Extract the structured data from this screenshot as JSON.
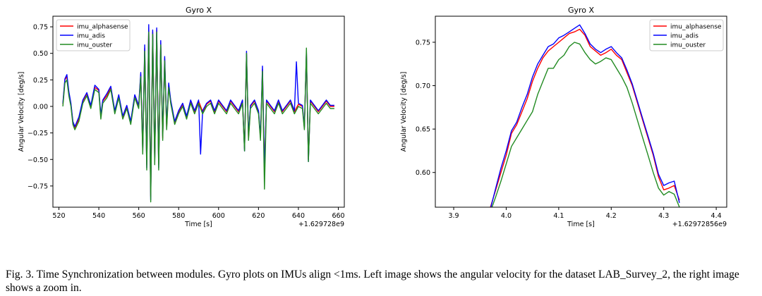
{
  "chart_data": [
    {
      "type": "line",
      "title": "Gyro X",
      "xlabel": "Time [s]",
      "ylabel": "Angular Velocity [deg/s]",
      "x_offset_label": "+1.629728e9",
      "xlim": [
        517,
        663
      ],
      "ylim": [
        -0.95,
        0.85
      ],
      "xticks": [
        520,
        540,
        560,
        580,
        600,
        620,
        640,
        660
      ],
      "yticks": [
        -0.75,
        -0.5,
        -0.25,
        0.0,
        0.25,
        0.5,
        0.75
      ],
      "ytick_labels": [
        "−0.75",
        "−0.50",
        "−0.25",
        "0.00",
        "0.25",
        "0.50",
        "0.75"
      ],
      "legend_position": "top-left",
      "grid": false,
      "series": [
        {
          "name": "imu_alphasense",
          "color": "#ff0000",
          "x": [
            522,
            523,
            524,
            525,
            526,
            527,
            528,
            530,
            532,
            534,
            536,
            538,
            540,
            541,
            542,
            544,
            546,
            548,
            550,
            552,
            554,
            556,
            558,
            560,
            561,
            562,
            563,
            564,
            565,
            566,
            567,
            568,
            569,
            570,
            571,
            572,
            573,
            574,
            575,
            576,
            578,
            580,
            582,
            584,
            586,
            588,
            590,
            592,
            594,
            596,
            598,
            600,
            602,
            604,
            606,
            608,
            610,
            612,
            613,
            614,
            615,
            616,
            618,
            620,
            621,
            622,
            623,
            624,
            626,
            628,
            630,
            632,
            634,
            636,
            638,
            640,
            642,
            643,
            644,
            645,
            646,
            648,
            650,
            652,
            654,
            656,
            658
          ],
          "y": [
            0.02,
            0.25,
            0.28,
            0.12,
            0.02,
            -0.15,
            -0.2,
            -0.12,
            0.05,
            0.12,
            0.0,
            0.18,
            0.15,
            -0.1,
            0.05,
            0.1,
            0.18,
            -0.05,
            0.1,
            -0.1,
            0.0,
            -0.15,
            0.1,
            0.0,
            0.3,
            -0.4,
            0.55,
            -0.55,
            0.74,
            -0.85,
            0.7,
            -0.5,
            0.72,
            -0.55,
            0.6,
            -0.3,
            0.45,
            -0.2,
            0.2,
            0.05,
            -0.15,
            -0.05,
            0.02,
            -0.1,
            0.05,
            -0.05,
            0.05,
            -0.05,
            0.02,
            0.05,
            -0.05,
            0.05,
            0.0,
            -0.05,
            0.05,
            0.0,
            -0.05,
            0.05,
            -0.4,
            0.5,
            -0.3,
            0.0,
            0.05,
            -0.05,
            -0.3,
            0.35,
            -0.6,
            0.05,
            0.0,
            -0.05,
            0.05,
            -0.05,
            0.0,
            0.05,
            -0.05,
            0.02,
            0.0,
            -0.2,
            0.5,
            -0.5,
            0.05,
            0.0,
            -0.05,
            0.0,
            0.05,
            0.0,
            0.0
          ]
        },
        {
          "name": "imu_adis",
          "color": "#0000ff",
          "x": [
            522,
            523,
            524,
            525,
            526,
            527,
            528,
            530,
            532,
            534,
            536,
            538,
            540,
            541,
            542,
            544,
            546,
            548,
            550,
            552,
            554,
            556,
            558,
            560,
            561,
            562,
            563,
            564,
            565,
            566,
            567,
            568,
            569,
            570,
            571,
            572,
            573,
            574,
            575,
            576,
            578,
            580,
            582,
            584,
            586,
            588,
            590,
            591,
            592,
            594,
            596,
            598,
            600,
            602,
            604,
            606,
            608,
            610,
            612,
            613,
            614,
            615,
            616,
            618,
            620,
            621,
            622,
            623,
            624,
            626,
            628,
            630,
            632,
            634,
            636,
            638,
            639,
            640,
            642,
            643,
            644,
            645,
            646,
            648,
            650,
            652,
            654,
            656,
            658
          ],
          "y": [
            0.03,
            0.26,
            0.3,
            0.14,
            0.03,
            -0.14,
            -0.19,
            -0.1,
            0.06,
            0.13,
            0.01,
            0.2,
            0.16,
            -0.08,
            0.06,
            0.12,
            0.19,
            -0.04,
            0.11,
            -0.09,
            0.01,
            -0.14,
            0.11,
            0.01,
            0.32,
            -0.42,
            0.58,
            -0.58,
            0.77,
            -0.88,
            0.72,
            -0.52,
            0.74,
            -0.58,
            0.62,
            -0.28,
            0.47,
            -0.18,
            0.22,
            0.06,
            -0.14,
            -0.04,
            0.03,
            -0.09,
            0.06,
            -0.04,
            0.06,
            -0.45,
            -0.04,
            0.03,
            0.06,
            -0.04,
            0.06,
            0.01,
            -0.04,
            0.06,
            0.01,
            -0.04,
            0.06,
            -0.42,
            0.52,
            -0.28,
            0.01,
            0.06,
            -0.04,
            -0.28,
            0.38,
            -0.62,
            0.06,
            0.01,
            -0.04,
            0.06,
            -0.04,
            0.01,
            0.06,
            -0.04,
            0.42,
            0.03,
            0.01,
            -0.2,
            0.52,
            -0.52,
            0.06,
            0.01,
            -0.04,
            0.01,
            0.06,
            0.01,
            0.01
          ]
        },
        {
          "name": "imu_ouster",
          "color": "#228b22",
          "x": [
            522,
            523,
            524,
            525,
            526,
            527,
            528,
            530,
            532,
            534,
            536,
            538,
            540,
            541,
            542,
            544,
            546,
            548,
            550,
            552,
            554,
            556,
            558,
            560,
            561,
            562,
            563,
            564,
            565,
            566,
            567,
            568,
            569,
            570,
            571,
            572,
            573,
            574,
            575,
            576,
            578,
            580,
            582,
            584,
            586,
            588,
            590,
            592,
            594,
            596,
            598,
            600,
            602,
            604,
            606,
            608,
            610,
            612,
            613,
            614,
            615,
            616,
            618,
            620,
            621,
            622,
            623,
            624,
            626,
            628,
            630,
            632,
            634,
            636,
            638,
            640,
            642,
            643,
            644,
            645,
            646,
            648,
            650,
            652,
            654,
            656,
            658
          ],
          "y": [
            0.0,
            0.22,
            0.25,
            0.1,
            0.0,
            -0.17,
            -0.22,
            -0.14,
            0.03,
            0.1,
            -0.02,
            0.16,
            0.13,
            -0.12,
            0.03,
            0.08,
            0.16,
            -0.07,
            0.08,
            -0.12,
            -0.02,
            -0.17,
            0.08,
            -0.02,
            0.28,
            -0.45,
            0.52,
            -0.6,
            0.7,
            -0.9,
            0.68,
            -0.55,
            0.7,
            -0.6,
            0.58,
            -0.32,
            0.43,
            -0.22,
            0.18,
            0.03,
            -0.17,
            -0.07,
            0.0,
            -0.12,
            0.03,
            -0.07,
            0.03,
            -0.07,
            0.0,
            0.03,
            -0.07,
            0.03,
            -0.02,
            -0.07,
            0.03,
            -0.02,
            -0.07,
            0.03,
            -0.42,
            0.5,
            -0.32,
            -0.02,
            0.03,
            -0.07,
            -0.32,
            0.33,
            -0.78,
            0.03,
            -0.02,
            -0.07,
            0.03,
            -0.07,
            -0.02,
            0.03,
            -0.07,
            0.0,
            -0.02,
            -0.22,
            0.55,
            -0.52,
            0.03,
            -0.02,
            -0.07,
            -0.02,
            0.03,
            -0.02,
            -0.02
          ]
        }
      ]
    },
    {
      "type": "line",
      "title": "Gyro X",
      "xlabel": "Time [s]",
      "ylabel": "Angular Velocity [deg/s]",
      "x_offset_label": "+1.62972856e9",
      "xlim": [
        3.865,
        4.42
      ],
      "ylim": [
        0.56,
        0.78
      ],
      "xticks": [
        3.9,
        4.0,
        4.1,
        4.2,
        4.3,
        4.4
      ],
      "xtick_labels": [
        "3.9",
        "4.0",
        "4.1",
        "4.2",
        "4.3",
        "4.4"
      ],
      "yticks": [
        0.6,
        0.65,
        0.7,
        0.75
      ],
      "ytick_labels": [
        "0.60",
        "0.65",
        "0.70",
        "0.75"
      ],
      "legend_position": "top-right",
      "grid": false,
      "series": [
        {
          "name": "imu_alphasense",
          "color": "#ff0000",
          "x": [
            3.97,
            3.98,
            3.99,
            4.0,
            4.01,
            4.02,
            4.03,
            4.04,
            4.05,
            4.06,
            4.07,
            4.08,
            4.09,
            4.1,
            4.11,
            4.12,
            4.13,
            4.14,
            4.15,
            4.16,
            4.17,
            4.18,
            4.19,
            4.2,
            4.21,
            4.22,
            4.23,
            4.24,
            4.25,
            4.26,
            4.27,
            4.28,
            4.29,
            4.3,
            4.31,
            4.32,
            4.33
          ],
          "y": [
            0.56,
            0.58,
            0.6,
            0.62,
            0.645,
            0.655,
            0.67,
            0.685,
            0.705,
            0.72,
            0.732,
            0.74,
            0.745,
            0.75,
            0.755,
            0.76,
            0.762,
            0.765,
            0.758,
            0.745,
            0.74,
            0.735,
            0.738,
            0.742,
            0.735,
            0.73,
            0.715,
            0.7,
            0.68,
            0.66,
            0.64,
            0.62,
            0.595,
            0.58,
            0.582,
            0.585,
            0.568
          ]
        },
        {
          "name": "imu_adis",
          "color": "#0000ff",
          "x": [
            3.97,
            3.98,
            3.99,
            4.0,
            4.01,
            4.02,
            4.03,
            4.04,
            4.05,
            4.06,
            4.07,
            4.08,
            4.09,
            4.1,
            4.11,
            4.12,
            4.13,
            4.14,
            4.15,
            4.16,
            4.17,
            4.18,
            4.19,
            4.2,
            4.21,
            4.22,
            4.23,
            4.24,
            4.25,
            4.26,
            4.27,
            4.28,
            4.29,
            4.3,
            4.31,
            4.32,
            4.33
          ],
          "y": [
            0.558,
            0.582,
            0.605,
            0.625,
            0.648,
            0.658,
            0.675,
            0.69,
            0.71,
            0.725,
            0.735,
            0.745,
            0.748,
            0.755,
            0.758,
            0.762,
            0.766,
            0.77,
            0.76,
            0.748,
            0.742,
            0.738,
            0.742,
            0.745,
            0.738,
            0.732,
            0.718,
            0.702,
            0.682,
            0.662,
            0.642,
            0.622,
            0.598,
            0.585,
            0.588,
            0.59,
            0.565
          ]
        },
        {
          "name": "imu_ouster",
          "color": "#228b22",
          "x": [
            3.97,
            3.98,
            3.99,
            4.0,
            4.01,
            4.02,
            4.03,
            4.04,
            4.05,
            4.06,
            4.07,
            4.08,
            4.09,
            4.1,
            4.11,
            4.12,
            4.13,
            4.14,
            4.15,
            4.16,
            4.17,
            4.18,
            4.19,
            4.2,
            4.21,
            4.22,
            4.23,
            4.24,
            4.25,
            4.26,
            4.27,
            4.28,
            4.29,
            4.3,
            4.31,
            4.32,
            4.33
          ],
          "y": [
            0.555,
            0.572,
            0.59,
            0.61,
            0.63,
            0.64,
            0.65,
            0.66,
            0.67,
            0.69,
            0.705,
            0.72,
            0.72,
            0.73,
            0.735,
            0.745,
            0.75,
            0.748,
            0.738,
            0.73,
            0.725,
            0.728,
            0.732,
            0.73,
            0.72,
            0.71,
            0.698,
            0.68,
            0.66,
            0.64,
            0.62,
            0.6,
            0.582,
            0.574,
            0.578,
            0.575,
            0.56
          ]
        }
      ]
    }
  ],
  "caption": "Fig. 3.   Time Synchronization between modules. Gyro plots on IMUs align <1ms. Left image shows the angular velocity for the dataset LAB_Survey_2, the right image shows a zoom in."
}
